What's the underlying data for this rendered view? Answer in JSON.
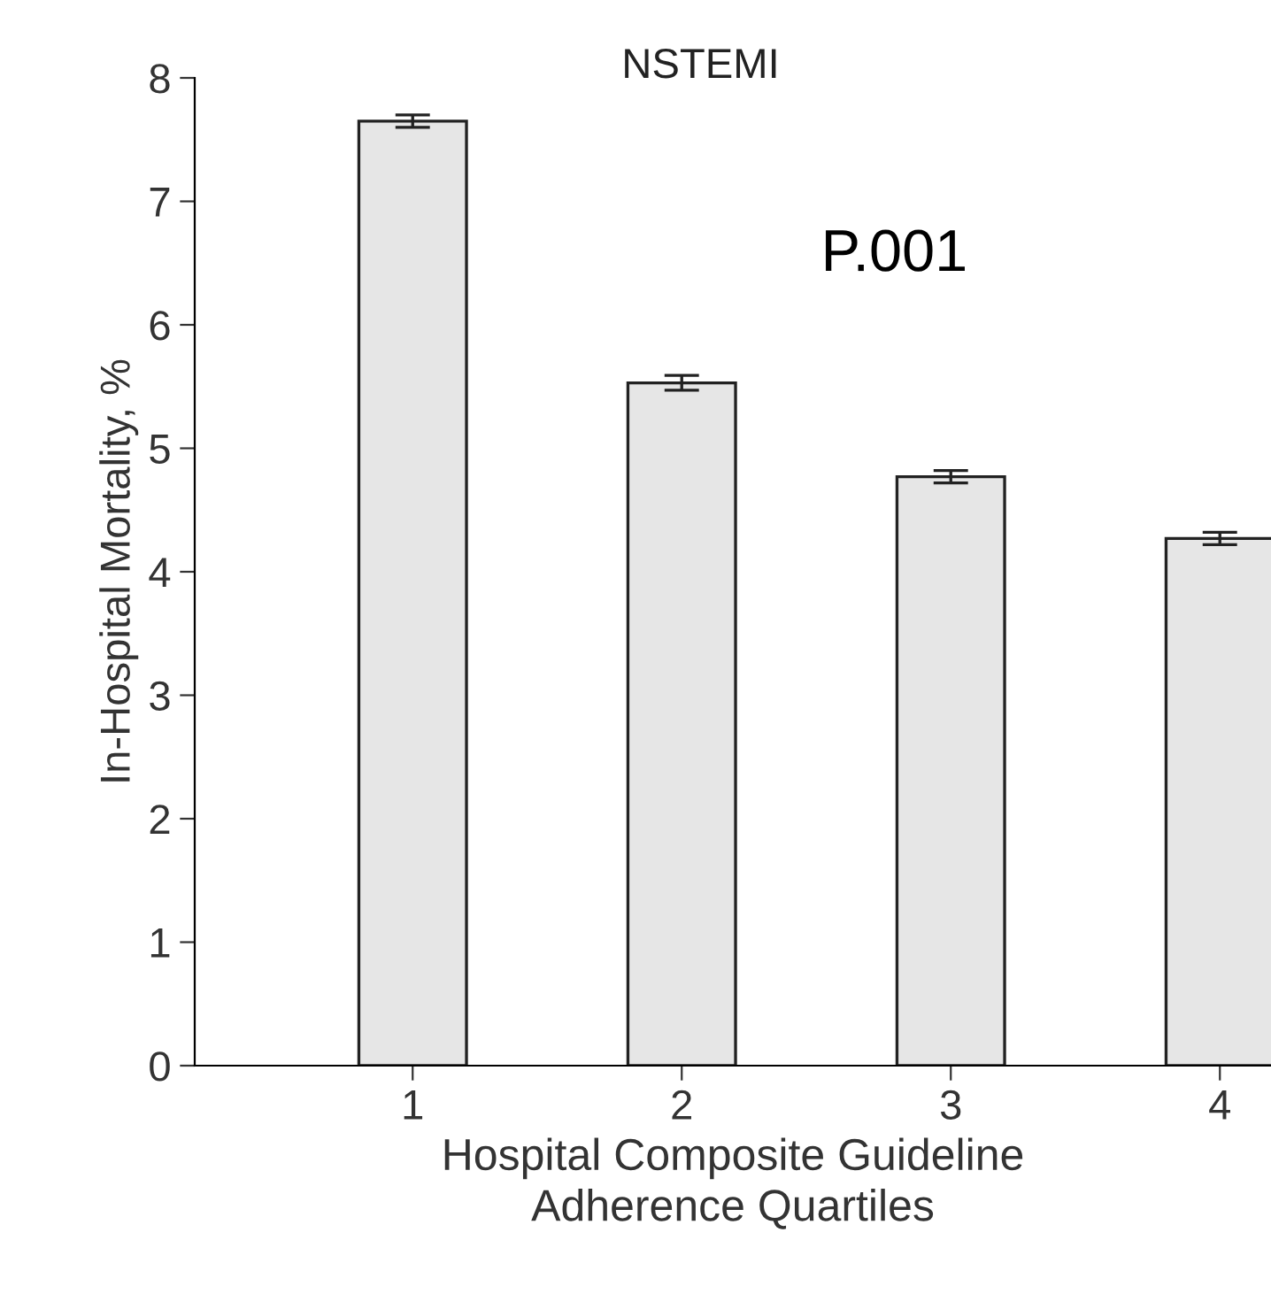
{
  "chart_data": {
    "type": "bar",
    "title": "NSTEMI",
    "xlabel": "Hospital Composite Guideline\nAdherence Quartiles",
    "ylabel": "In-Hospital Mortality, %",
    "categories": [
      "1",
      "2",
      "3",
      "4"
    ],
    "values": [
      7.65,
      5.53,
      4.77,
      4.27
    ],
    "errors": [
      0.05,
      0.06,
      0.05,
      0.05
    ],
    "color": "#e6e6e6",
    "ylim": [
      0,
      8
    ],
    "yticks": [
      0,
      1,
      2,
      3,
      4,
      5,
      6,
      7,
      8
    ],
    "annotations": [
      "P.001"
    ],
    "grid": false,
    "legend": false
  }
}
